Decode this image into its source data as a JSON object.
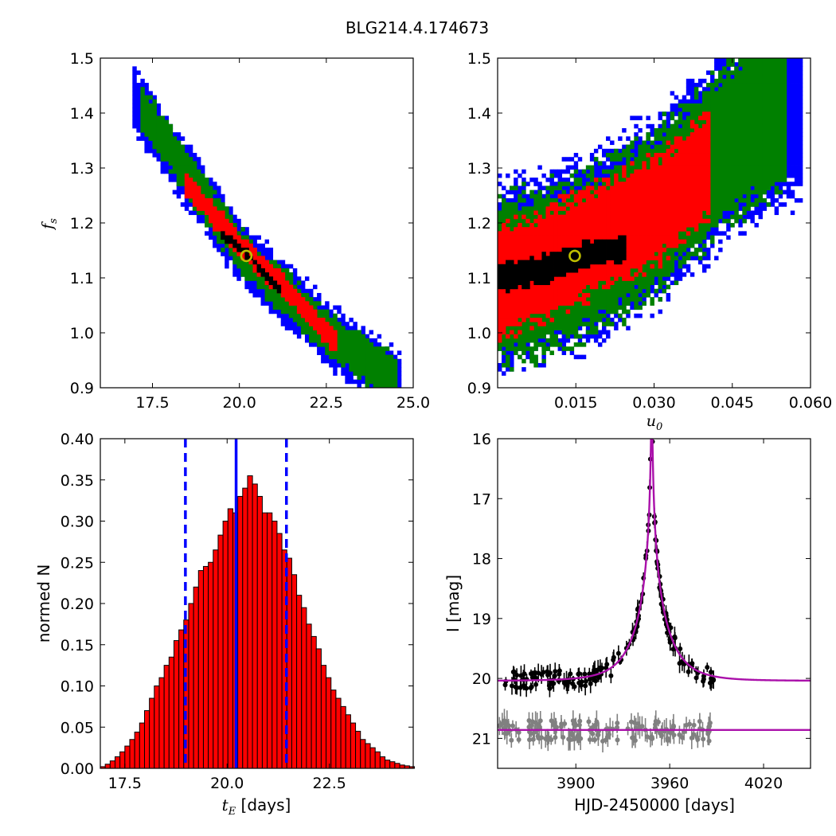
{
  "figure": {
    "title": "BLG214.4.174673"
  },
  "colors": {
    "blue": "#0000ff",
    "green": "#008000",
    "red": "#ff0000",
    "black": "#000000",
    "best": "#bfbf00",
    "model": "#aa10aa",
    "grey": "#808080"
  },
  "chart_data": [
    {
      "id": "fs_vs_tE",
      "type": "scatter",
      "xlim": [
        16,
        25
      ],
      "ylim": [
        0.9,
        1.5
      ],
      "xticks": [
        17.5,
        20.0,
        22.5,
        25.0
      ],
      "xticklabels": [
        "17.5",
        "20.0",
        "22.5",
        "25.0"
      ],
      "yticks": [
        0.9,
        1.0,
        1.1,
        1.2,
        1.3,
        1.4,
        1.5
      ],
      "yticklabels": [
        "0.9",
        "1.0",
        "1.1",
        "1.2",
        "1.3",
        "1.4",
        "1.5"
      ],
      "xlabel": "",
      "ylabel": "f_s",
      "best_fit": {
        "x": 20.2,
        "y": 1.14
      },
      "levels": [
        {
          "level": "blue",
          "ridge": [
            [
              17.0,
              1.42
            ],
            [
              20.0,
              1.15
            ],
            [
              22.5,
              1.0
            ],
            [
              24.6,
              0.905
            ]
          ],
          "width": 0.058
        },
        {
          "level": "green",
          "ridge": [
            [
              17.2,
              1.41
            ],
            [
              20.0,
              1.15
            ],
            [
              22.5,
              1.0
            ],
            [
              24.4,
              0.92
            ]
          ],
          "width": 0.042
        },
        {
          "level": "red",
          "ridge": [
            [
              18.5,
              1.27
            ],
            [
              20.0,
              1.16
            ],
            [
              21.5,
              1.07
            ],
            [
              22.7,
              0.985
            ]
          ],
          "width": 0.022
        },
        {
          "level": "black",
          "ridge": [
            [
              19.5,
              1.18
            ],
            [
              20.2,
              1.145
            ],
            [
              21.1,
              1.08
            ]
          ],
          "width": 0.008
        }
      ]
    },
    {
      "id": "fs_vs_u0",
      "type": "scatter",
      "xlim": [
        0,
        0.06
      ],
      "ylim": [
        0.9,
        1.5
      ],
      "xticks": [
        0.015,
        0.03,
        0.045,
        0.06
      ],
      "xticklabels": [
        "0.015",
        "0.030",
        "0.045",
        "0.060"
      ],
      "yticks": [
        0.9,
        1.0,
        1.1,
        1.2,
        1.3,
        1.4,
        1.5
      ],
      "yticklabels": [
        "0.9",
        "1.0",
        "1.1",
        "1.2",
        "1.3",
        "1.4",
        "1.5"
      ],
      "xlabel": "u_0",
      "ylabel": "",
      "best_fit": {
        "x": 0.0148,
        "y": 1.14
      },
      "levels": [
        {
          "level": "blue",
          "ridge": [
            [
              0.0,
              1.1
            ],
            [
              0.015,
              1.14
            ],
            [
              0.03,
              1.22
            ],
            [
              0.045,
              1.35
            ],
            [
              0.058,
              1.42
            ]
          ],
          "width": 0.17
        },
        {
          "level": "green",
          "ridge": [
            [
              0.0,
              1.09
            ],
            [
              0.015,
              1.13
            ],
            [
              0.03,
              1.22
            ],
            [
              0.045,
              1.35
            ],
            [
              0.055,
              1.42
            ]
          ],
          "width": 0.15
        },
        {
          "level": "red",
          "ridge": [
            [
              0.0,
              1.09
            ],
            [
              0.015,
              1.15
            ],
            [
              0.03,
              1.22
            ],
            [
              0.04,
              1.3
            ]
          ],
          "width": 0.1
        },
        {
          "level": "black",
          "ridge": [
            [
              0.0,
              1.1
            ],
            [
              0.01,
              1.12
            ],
            [
              0.02,
              1.15
            ],
            [
              0.024,
              1.15
            ]
          ],
          "width": 0.025
        }
      ]
    },
    {
      "id": "tE_histogram",
      "type": "bar",
      "xlim": [
        16.9,
        24.55
      ],
      "ylim": [
        0,
        0.4
      ],
      "xticks": [
        17.5,
        20.0,
        22.5
      ],
      "xticklabels": [
        "17.5",
        "20.0",
        "22.5"
      ],
      "yticks": [
        0,
        0.05,
        0.1,
        0.15,
        0.2,
        0.25,
        0.3,
        0.35,
        0.4
      ],
      "yticklabels": [
        "0.00",
        "0.05",
        "0.10",
        "0.15",
        "0.20",
        "0.25",
        "0.30",
        "0.35",
        "0.40"
      ],
      "xlabel": "t_E [days]",
      "ylabel": "normed N",
      "bin_start": 16.9,
      "bin_width": 0.12,
      "values": [
        0.002,
        0.005,
        0.009,
        0.014,
        0.02,
        0.027,
        0.035,
        0.044,
        0.055,
        0.07,
        0.085,
        0.1,
        0.11,
        0.125,
        0.135,
        0.155,
        0.168,
        0.18,
        0.2,
        0.22,
        0.24,
        0.245,
        0.25,
        0.265,
        0.283,
        0.3,
        0.315,
        0.31,
        0.33,
        0.34,
        0.355,
        0.345,
        0.33,
        0.31,
        0.31,
        0.3,
        0.285,
        0.265,
        0.255,
        0.235,
        0.21,
        0.195,
        0.175,
        0.16,
        0.145,
        0.125,
        0.11,
        0.095,
        0.085,
        0.075,
        0.065,
        0.055,
        0.045,
        0.035,
        0.03,
        0.025,
        0.02,
        0.014,
        0.01,
        0.008,
        0.006,
        0.004,
        0.003,
        0.002
      ],
      "median": 20.22,
      "sigma_lines": [
        18.98,
        21.45
      ]
    },
    {
      "id": "light_curve",
      "type": "line",
      "xlim": [
        3850,
        4050
      ],
      "ylim": [
        21.5,
        16
      ],
      "xticks": [
        3900,
        3960,
        4020
      ],
      "xticklabels": [
        "3900",
        "3960",
        "4020"
      ],
      "yticks": [
        16,
        17,
        18,
        19,
        20,
        21
      ],
      "yticklabels": [
        "16",
        "17",
        "18",
        "19",
        "20",
        "21"
      ],
      "xlabel": "HJD-2450000 [days]",
      "ylabel": "I [mag]",
      "model": {
        "t0": 3948.5,
        "u0": 0.0148,
        "tE": 20.2,
        "baseline": 20.04,
        "fs": 1.14
      },
      "baseline2": 20.86,
      "data_range": [
        3851,
        3988
      ]
    }
  ]
}
